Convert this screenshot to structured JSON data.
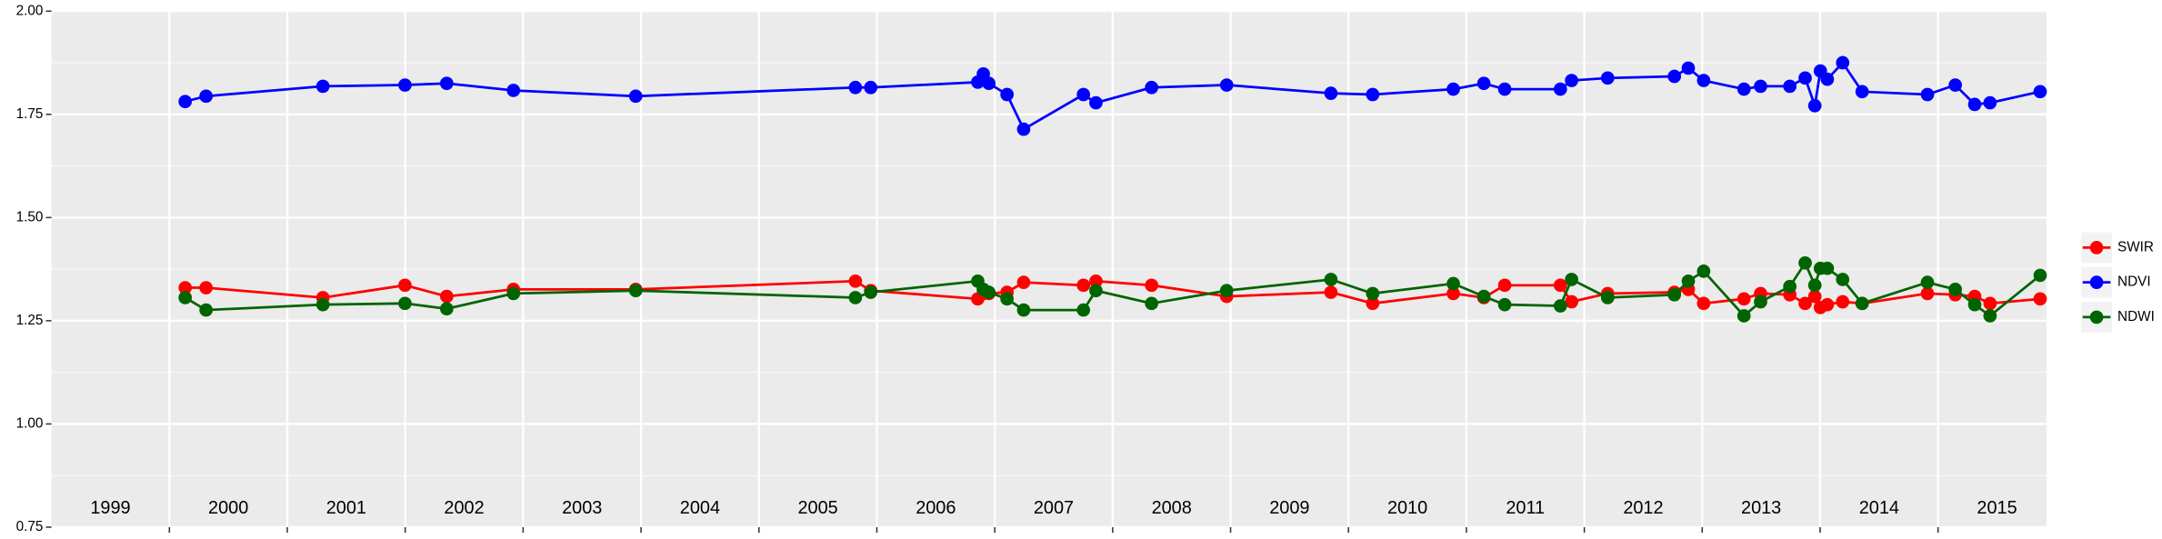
{
  "chart_data": {
    "type": "line",
    "x": [
      2000.134,
      2000.311,
      2001.302,
      2001.998,
      2002.352,
      2002.918,
      2003.955,
      2005.818,
      2005.948,
      2006.856,
      2006.903,
      2006.95,
      2007.104,
      2007.245,
      2007.752,
      2007.858,
      2008.33,
      2008.967,
      2009.851,
      2010.205,
      2010.889,
      2011.148,
      2011.325,
      2011.797,
      2011.892,
      2012.198,
      2012.764,
      2012.882,
      2013.012,
      2013.354,
      2013.495,
      2013.743,
      2013.873,
      2013.955,
      2014.002,
      2014.061,
      2014.191,
      2014.356,
      2014.91,
      2015.146,
      2015.311,
      2015.441,
      2015.866
    ],
    "series": [
      {
        "name": "SWIR",
        "color": "#ff0000",
        "values": [
          1.33,
          1.33,
          1.306,
          1.336,
          1.309,
          1.326,
          1.326,
          1.346,
          1.323,
          1.303,
          1.316,
          1.316,
          1.319,
          1.343,
          1.336,
          1.346,
          1.336,
          1.309,
          1.319,
          1.292,
          1.316,
          1.306,
          1.336,
          1.336,
          1.296,
          1.316,
          1.319,
          1.326,
          1.292,
          1.303,
          1.316,
          1.313,
          1.292,
          1.309,
          1.282,
          1.289,
          1.296,
          1.292,
          1.316,
          1.313,
          1.309,
          1.292,
          1.303
        ]
      },
      {
        "name": "NDVI",
        "color": "#0000ff",
        "values": [
          1.781,
          1.794,
          1.818,
          1.821,
          1.825,
          1.808,
          1.794,
          1.815,
          1.815,
          1.828,
          1.848,
          1.825,
          1.798,
          1.714,
          1.798,
          1.778,
          1.815,
          1.821,
          1.801,
          1.798,
          1.811,
          1.825,
          1.811,
          1.811,
          1.832,
          1.838,
          1.842,
          1.862,
          1.832,
          1.811,
          1.818,
          1.818,
          1.838,
          1.771,
          1.855,
          1.835,
          1.875,
          1.805,
          1.798,
          1.821,
          1.774,
          1.778,
          1.805
        ]
      },
      {
        "name": "NDWI",
        "color": "#006400",
        "values": [
          1.306,
          1.276,
          1.289,
          1.292,
          1.279,
          1.316,
          1.323,
          1.306,
          1.319,
          1.346,
          1.326,
          1.319,
          1.303,
          1.276,
          1.276,
          1.323,
          1.292,
          1.323,
          1.35,
          1.316,
          1.34,
          1.309,
          1.289,
          1.286,
          1.35,
          1.306,
          1.313,
          1.346,
          1.37,
          1.262,
          1.296,
          1.333,
          1.39,
          1.336,
          1.377,
          1.377,
          1.35,
          1.292,
          1.343,
          1.326,
          1.289,
          1.262,
          1.36
        ]
      }
    ],
    "year_labels": [
      1999,
      2000,
      2001,
      2002,
      2003,
      2004,
      2005,
      2006,
      2007,
      2008,
      2009,
      2010,
      2011,
      2012,
      2013,
      2014,
      2015
    ],
    "year_label_y": 0.794,
    "xlim": [
      1999,
      2015.92
    ],
    "xticks": [
      2000,
      2001,
      2002,
      2003,
      2004,
      2005,
      2006,
      2007,
      2008,
      2009,
      2010,
      2011,
      2012,
      2013,
      2014,
      2015
    ],
    "ylim": [
      0.75,
      2.0
    ],
    "yticks": [
      {
        "value": 0.75,
        "label": "0.75"
      },
      {
        "value": 1.0,
        "label": "1.00"
      },
      {
        "value": 1.25,
        "label": "1.25"
      },
      {
        "value": 1.5,
        "label": "1.50"
      },
      {
        "value": 1.75,
        "label": "1.75"
      },
      {
        "value": 2.0,
        "label": "2.00"
      }
    ],
    "grid": true,
    "legend": "right"
  }
}
